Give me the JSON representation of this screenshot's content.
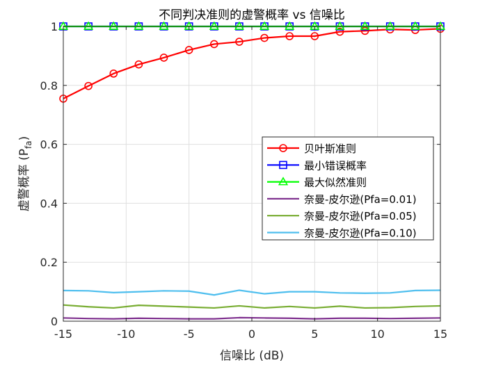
{
  "chart_data": {
    "type": "line",
    "title": "不同判决准则的虚警概率 vs 信噪比",
    "xlabel": "信噪比 (dB)",
    "ylabel": {
      "main": "虚警概率 (P",
      "sub": "fa",
      "close": ")"
    },
    "xlim": [
      -15,
      15
    ],
    "ylim": [
      0,
      1
    ],
    "grid": true,
    "legend_position": "middle-right",
    "xticks": [
      -15,
      -10,
      -5,
      0,
      5,
      10,
      15
    ],
    "xtick_labels": [
      "-15",
      "-10",
      "-5",
      "0",
      "5",
      "10",
      "15"
    ],
    "yticks": [
      0,
      0.2,
      0.4,
      0.6,
      0.8,
      1
    ],
    "ytick_labels": [
      "0",
      "0.2",
      "0.4",
      "0.6",
      "0.8",
      "1"
    ],
    "series": [
      {
        "name": "贝叶斯准则",
        "color": "#ff0000",
        "marker": "circle",
        "x": [
          -15,
          -13,
          -11,
          -9,
          -7,
          -5,
          -3,
          -1,
          1,
          3,
          5,
          7,
          9,
          11,
          13,
          15
        ],
        "values": [
          0.755,
          0.798,
          0.84,
          0.871,
          0.894,
          0.92,
          0.94,
          0.948,
          0.961,
          0.967,
          0.967,
          0.982,
          0.985,
          0.99,
          0.988,
          0.992
        ]
      },
      {
        "name": "最小错误概率",
        "color": "#0000ff",
        "marker": "square",
        "x": [
          -15,
          -13,
          -11,
          -9,
          -7,
          -5,
          -3,
          -1,
          1,
          3,
          5,
          7,
          9,
          11,
          13,
          15
        ],
        "values": [
          1,
          1,
          1,
          1,
          1,
          1,
          1,
          1,
          1,
          1,
          1,
          1,
          1,
          1,
          1,
          1
        ]
      },
      {
        "name": "最大似然准则",
        "color": "#00ff00",
        "marker": "triangle",
        "x": [
          -15,
          -13,
          -11,
          -9,
          -7,
          -5,
          -3,
          -1,
          1,
          3,
          5,
          7,
          9,
          11,
          13,
          15
        ],
        "values": [
          1,
          1,
          1,
          1,
          1,
          1,
          1,
          1,
          1,
          1,
          1,
          1,
          1,
          1,
          1,
          1
        ]
      },
      {
        "name": "奈曼-皮尔逊(Pfa=0.01)",
        "color": "#7e2f8e",
        "marker": "none",
        "x": [
          -15,
          -13,
          -11,
          -9,
          -7,
          -5,
          -3,
          -1,
          1,
          3,
          5,
          7,
          9,
          11,
          13,
          15
        ],
        "values": [
          0.011,
          0.009,
          0.008,
          0.01,
          0.009,
          0.008,
          0.008,
          0.012,
          0.011,
          0.01,
          0.008,
          0.01,
          0.01,
          0.009,
          0.01,
          0.011
        ]
      },
      {
        "name": "奈曼-皮尔逊(Pfa=0.05)",
        "color": "#77ac30",
        "marker": "none",
        "x": [
          -15,
          -13,
          -11,
          -9,
          -7,
          -5,
          -3,
          -1,
          1,
          3,
          5,
          7,
          9,
          11,
          13,
          15
        ],
        "values": [
          0.055,
          0.049,
          0.045,
          0.054,
          0.051,
          0.048,
          0.045,
          0.052,
          0.045,
          0.05,
          0.045,
          0.051,
          0.045,
          0.046,
          0.05,
          0.052
        ]
      },
      {
        "name": "奈曼-皮尔逊(Pfa=0.10)",
        "color": "#4dbeee",
        "marker": "none",
        "x": [
          -15,
          -13,
          -11,
          -9,
          -7,
          -5,
          -3,
          -1,
          1,
          3,
          5,
          7,
          9,
          11,
          13,
          15
        ],
        "values": [
          0.104,
          0.103,
          0.097,
          0.1,
          0.103,
          0.102,
          0.089,
          0.105,
          0.093,
          0.1,
          0.1,
          0.096,
          0.095,
          0.096,
          0.104,
          0.105
        ]
      }
    ]
  }
}
